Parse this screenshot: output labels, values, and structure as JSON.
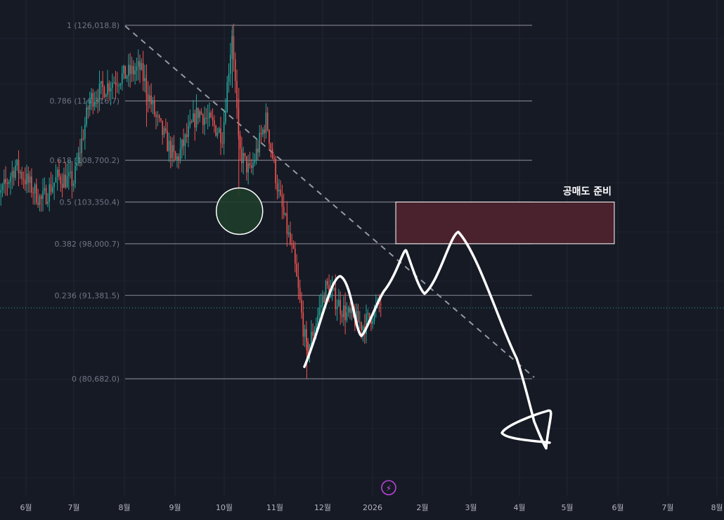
{
  "chart_data": {
    "type": "candlestick",
    "colors": {
      "background": "#161a25",
      "up": "#26a69a",
      "down": "#ef5350",
      "fib_line": "#787b86",
      "zone_fill": "#4a222d",
      "drawing": "#ffffff",
      "circle_fill": "#1e3d2a"
    },
    "x_axis": {
      "ticks": [
        "6월",
        "7월",
        "8월",
        "9월",
        "10월",
        "11월",
        "12월",
        "2026",
        "2월",
        "3월",
        "4월",
        "5월",
        "6월",
        "7월",
        "8월"
      ]
    },
    "y_range": [
      72000,
      132000
    ],
    "fib_levels": [
      {
        "ratio": 1,
        "price": 126018.8,
        "label": "1 (126,018.8)"
      },
      {
        "ratio": 0.786,
        "price": 116316.7,
        "label": "0.786 (116,316.7)"
      },
      {
        "ratio": 0.618,
        "price": 108700.2,
        "label": "0.618 (108,700.2)"
      },
      {
        "ratio": 0.5,
        "price": 103350.4,
        "label": "0.5 (103,350.4)"
      },
      {
        "ratio": 0.382,
        "price": 98000.7,
        "label": "0.382 (98,000.7)"
      },
      {
        "ratio": 0.236,
        "price": 91381.5,
        "label": "0.236 (91,381.5)"
      },
      {
        "ratio": 0,
        "price": 80682.0,
        "label": "0 (80,682.0)"
      }
    ],
    "current_price": 90500,
    "short_zone": {
      "label": "공매도 준비",
      "price_low": 98000.7,
      "price_high": 103350.4,
      "start": "2026-01-15",
      "end": "2026-05-30"
    },
    "price_path": [
      {
        "date": "2025-05-10",
        "price": 102000
      },
      {
        "date": "2025-05-25",
        "price": 108000
      },
      {
        "date": "2025-06-10",
        "price": 103500
      },
      {
        "date": "2025-06-20",
        "price": 106500
      },
      {
        "date": "2025-06-30",
        "price": 106000
      },
      {
        "date": "2025-07-10",
        "price": 116500
      },
      {
        "date": "2025-07-25",
        "price": 119000
      },
      {
        "date": "2025-08-10",
        "price": 120500
      },
      {
        "date": "2025-08-20",
        "price": 114000
      },
      {
        "date": "2025-09-01",
        "price": 108500
      },
      {
        "date": "2025-09-15",
        "price": 115000
      },
      {
        "date": "2025-09-30",
        "price": 112000
      },
      {
        "date": "2025-10-06",
        "price": 125500
      },
      {
        "date": "2025-10-10",
        "price": 110000
      },
      {
        "date": "2025-10-17",
        "price": 107000
      },
      {
        "date": "2025-10-27",
        "price": 114000
      },
      {
        "date": "2025-11-04",
        "price": 104000
      },
      {
        "date": "2025-11-13",
        "price": 96000
      },
      {
        "date": "2025-11-21",
        "price": 84000
      },
      {
        "date": "2025-12-03",
        "price": 92500
      },
      {
        "date": "2025-12-15",
        "price": 89000
      },
      {
        "date": "2025-12-26",
        "price": 87500
      },
      {
        "date": "2026-01-06",
        "price": 90500
      }
    ],
    "annotations": {
      "circle_date": "2025-10-10",
      "circle_price": 103350.4
    }
  }
}
